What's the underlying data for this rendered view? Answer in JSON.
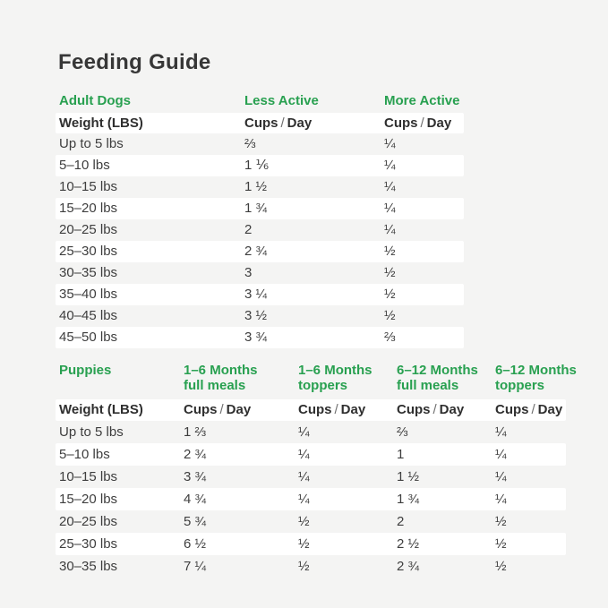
{
  "title": "Feeding Guide",
  "colors": {
    "accent_green": "#28a050",
    "background": "#f4f4f3",
    "stripe": "#ffffff",
    "text": "#3c3c3c"
  },
  "labels": {
    "weight_header": "Weight (LBS)",
    "cups": "Cups",
    "slash": "/",
    "day": "Day"
  },
  "adult": {
    "section_label": "Adult Dogs",
    "columns": [
      "Less Active",
      "More Active"
    ],
    "rows": [
      {
        "weight": "Up to 5 lbs",
        "values": [
          "⅔",
          "¼"
        ]
      },
      {
        "weight": "5–10 lbs",
        "values": [
          "1 ⅙",
          "¼"
        ]
      },
      {
        "weight": "10–15 lbs",
        "values": [
          "1 ½",
          "¼"
        ]
      },
      {
        "weight": "15–20 lbs",
        "values": [
          "1 ¾",
          "¼"
        ]
      },
      {
        "weight": "20–25 lbs",
        "values": [
          "2",
          "¼"
        ]
      },
      {
        "weight": "25–30 lbs",
        "values": [
          "2 ¾",
          "½"
        ]
      },
      {
        "weight": "30–35 lbs",
        "values": [
          "3",
          "½"
        ]
      },
      {
        "weight": "35–40 lbs",
        "values": [
          "3 ¼",
          "½"
        ]
      },
      {
        "weight": "40–45 lbs",
        "values": [
          "3 ½",
          "½"
        ]
      },
      {
        "weight": "45–50 lbs",
        "values": [
          "3 ¾",
          "⅔"
        ]
      }
    ]
  },
  "puppies": {
    "section_label": "Puppies",
    "columns": [
      {
        "line1": "1–6 Months",
        "line2": "full meals"
      },
      {
        "line1": "1–6 Months",
        "line2": "toppers"
      },
      {
        "line1": "6–12 Months",
        "line2": "full meals"
      },
      {
        "line1": "6–12 Months",
        "line2": "toppers"
      }
    ],
    "rows": [
      {
        "weight": "Up to 5 lbs",
        "values": [
          "1 ⅔",
          "¼",
          "⅔",
          "¼"
        ]
      },
      {
        "weight": "5–10 lbs",
        "values": [
          "2 ¾",
          "¼",
          "1",
          "¼"
        ]
      },
      {
        "weight": "10–15 lbs",
        "values": [
          "3 ¾",
          "¼",
          "1 ½",
          "¼"
        ]
      },
      {
        "weight": "15–20 lbs",
        "values": [
          "4 ¾",
          "¼",
          "1 ¾",
          "¼"
        ]
      },
      {
        "weight": "20–25 lbs",
        "values": [
          "5 ¾",
          "½",
          "2",
          "½"
        ]
      },
      {
        "weight": "25–30 lbs",
        "values": [
          "6 ½",
          "½",
          "2 ½",
          "½"
        ]
      },
      {
        "weight": "30–35 lbs",
        "values": [
          "7 ¼",
          "½",
          "2 ¾",
          "½"
        ]
      }
    ]
  }
}
